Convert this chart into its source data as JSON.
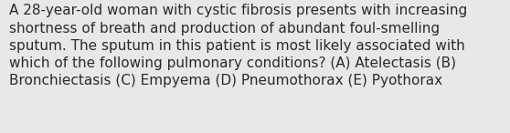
{
  "text": "A 28-year-old woman with cystic fibrosis presents with increasing\nshortness of breath and production of abundant foul-smelling\nsputum. The sputum in this patient is most likely associated with\nwhich of the following pulmonary conditions? (A) Atelectasis (B)\nBronchiectasis (C) Empyema (D) Pneumothorax (E) Pyothorax",
  "background_color": "#e8e8e8",
  "text_color": "#2b2b2b",
  "font_size": 11.0,
  "fig_width": 5.58,
  "fig_height": 1.46,
  "dpi": 100
}
